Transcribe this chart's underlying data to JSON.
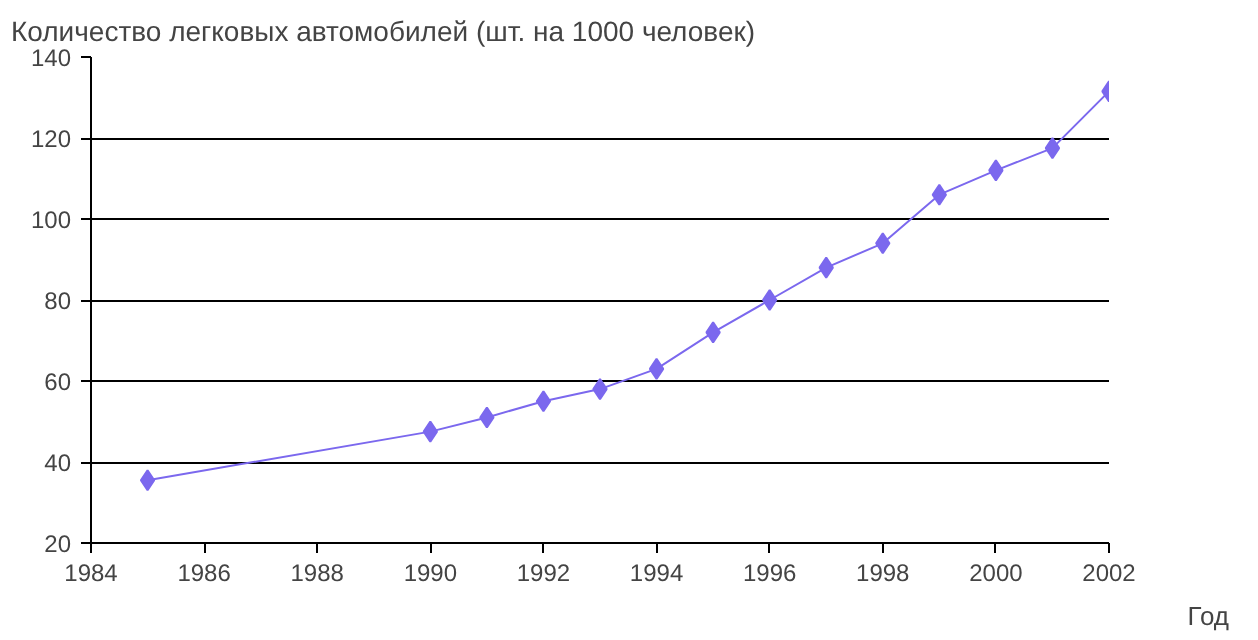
{
  "chart_data": {
    "type": "line",
    "title": "Количество легковых автомобилей (шт. на 1000 человек)",
    "xlabel": "Год",
    "x": [
      1985,
      1990,
      1991,
      1992,
      1993,
      1994,
      1995,
      1996,
      1997,
      1998,
      1999,
      2000,
      2001,
      2002
    ],
    "series": [
      {
        "color": "#7b68ee",
        "values": [
          35.5,
          47.5,
          51,
          55,
          58,
          63,
          72,
          80,
          88,
          94,
          106,
          112,
          117.5,
          131.5
        ]
      }
    ],
    "xlim": [
      1984,
      2002
    ],
    "xticks": [
      1984,
      1986,
      1988,
      1990,
      1992,
      1994,
      1996,
      1998,
      2000,
      2002
    ],
    "ylim": [
      20,
      140
    ],
    "yticks": [
      20,
      40,
      60,
      80,
      100,
      120,
      140
    ],
    "grid": "y",
    "marker": "diamond",
    "line_style": "solid"
  }
}
